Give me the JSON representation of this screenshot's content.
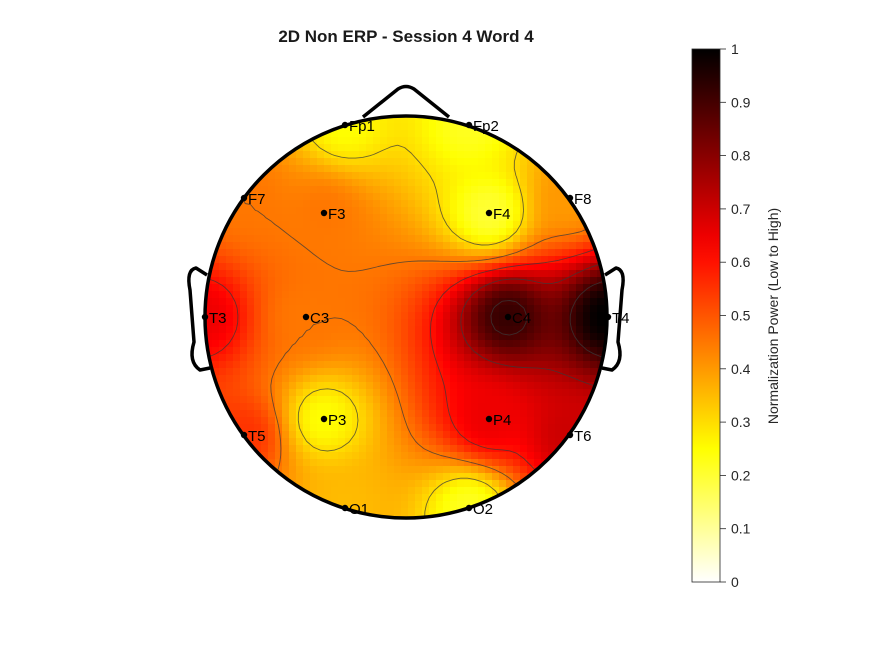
{
  "chart_data": {
    "type": "heatmap",
    "title": "2D Non ERP - Session 4 Word 4",
    "colorbar": {
      "label": "Normalization Power (Low to High)",
      "range": [
        0,
        1
      ],
      "ticks": [
        "0",
        "0.1",
        "0.2",
        "0.3",
        "0.4",
        "0.5",
        "0.6",
        "0.7",
        "0.8",
        "0.9",
        "1"
      ],
      "colormap": "hot (inverted)",
      "position": "right"
    },
    "electrodes": [
      {
        "name": "Fp1",
        "value": 0.25
      },
      {
        "name": "Fp2",
        "value": 0.22
      },
      {
        "name": "F7",
        "value": 0.45
      },
      {
        "name": "F3",
        "value": 0.45
      },
      {
        "name": "F4",
        "value": 0.2
      },
      {
        "name": "F8",
        "value": 0.4
      },
      {
        "name": "T3",
        "value": 0.65
      },
      {
        "name": "C3",
        "value": 0.45
      },
      {
        "name": "C4",
        "value": 0.92
      },
      {
        "name": "T4",
        "value": 1.0
      },
      {
        "name": "T5",
        "value": 0.55
      },
      {
        "name": "P3",
        "value": 0.25
      },
      {
        "name": "P4",
        "value": 0.65
      },
      {
        "name": "T6",
        "value": 0.7
      },
      {
        "name": "O1",
        "value": 0.35
      },
      {
        "name": "O2",
        "value": 0.22
      }
    ]
  }
}
